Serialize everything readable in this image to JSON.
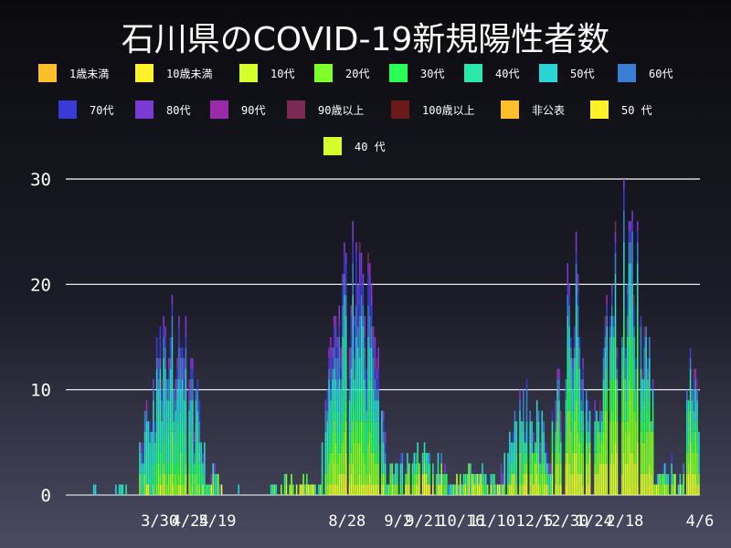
{
  "title": "石川県のCOVID-19新規陽性者数",
  "legend": [
    {
      "label": "1歳未満",
      "color": "#ffbf2a"
    },
    {
      "label": "10歳未満",
      "color": "#fff22a"
    },
    {
      "label": "10代",
      "color": "#d4ff2a"
    },
    {
      "label": "20代",
      "color": "#7fff2a"
    },
    {
      "label": "30代",
      "color": "#2aff55"
    },
    {
      "label": "40代",
      "color": "#2ae8aa"
    },
    {
      "label": "50代",
      "color": "#2ad4d4"
    },
    {
      "label": "60代",
      "color": "#3a7fd4"
    },
    {
      "label": "70代",
      "color": "#3a3ad4"
    },
    {
      "label": "80代",
      "color": "#7a3ad4"
    },
    {
      "label": "90代",
      "color": "#9a2aaa"
    },
    {
      "label": "90歳以上",
      "color": "#7a2a55"
    },
    {
      "label": "100歳以上",
      "color": "#6a1a1a"
    },
    {
      "label": "非公表",
      "color": "#ffbf2a"
    },
    {
      "label": "50 代",
      "color": "#fff22a"
    },
    {
      "label": "40 代",
      "color": "#d4ff2a"
    }
  ],
  "chart_data": {
    "type": "bar",
    "stacked": true,
    "ylim": [
      0,
      30
    ],
    "yticks": [
      0,
      10,
      20,
      30
    ],
    "xticks": [
      "3/30",
      "4/24",
      "5/19",
      "8/28",
      "9/2",
      "9/21",
      "10/16",
      "11/10",
      "12/5",
      "12/30",
      "1/24",
      "2/18",
      "4/6"
    ],
    "grid": true,
    "legend_position": "top",
    "series": [
      {
        "name": "1歳未満",
        "color": "#ffbf2a"
      },
      {
        "name": "10歳未満",
        "color": "#fff22a"
      },
      {
        "name": "10代",
        "color": "#d4ff2a"
      },
      {
        "name": "20代",
        "color": "#7fff2a"
      },
      {
        "name": "30代",
        "color": "#2aff55"
      },
      {
        "name": "40代",
        "color": "#2ae8aa"
      },
      {
        "name": "50代",
        "color": "#2ad4d4"
      },
      {
        "name": "60代",
        "color": "#3a7fd4"
      },
      {
        "name": "70代",
        "color": "#3a3ad4"
      },
      {
        "name": "80代",
        "color": "#7a3ad4"
      },
      {
        "name": "90代",
        "color": "#9a2aaa"
      },
      {
        "name": "90歳以上",
        "color": "#7a2a55"
      }
    ],
    "segments": [
      {
        "start": 15,
        "end": 18,
        "peak": 1,
        "mix": [
          0,
          0,
          0,
          0,
          0,
          0.5,
          0.5,
          0,
          0,
          0,
          0,
          0
        ]
      },
      {
        "start": 28,
        "end": 36,
        "peak": 1,
        "mix": [
          0,
          0,
          0,
          0,
          0,
          0.5,
          0.5,
          0,
          0,
          0,
          0,
          0
        ]
      },
      {
        "start": 43,
        "end": 82,
        "peak": 20,
        "mix": [
          0,
          0.02,
          0.06,
          0.1,
          0.1,
          0.2,
          0.2,
          0.12,
          0.08,
          0.06,
          0.04,
          0.02
        ]
      },
      {
        "start": 82,
        "end": 92,
        "peak": 3,
        "mix": [
          0,
          0.05,
          0.1,
          0.15,
          0.15,
          0.2,
          0.15,
          0.1,
          0.05,
          0.05,
          0,
          0
        ]
      },
      {
        "start": 100,
        "end": 102,
        "peak": 1,
        "mix": [
          0,
          0,
          0,
          0,
          0,
          0.5,
          0.5,
          0,
          0,
          0,
          0,
          0
        ]
      },
      {
        "start": 120,
        "end": 150,
        "peak": 2,
        "mix": [
          0,
          0.05,
          0.2,
          0.2,
          0.2,
          0.2,
          0.15,
          0,
          0,
          0,
          0,
          0
        ]
      },
      {
        "start": 150,
        "end": 188,
        "peak": 27,
        "mix": [
          0,
          0.02,
          0.08,
          0.15,
          0.1,
          0.15,
          0.15,
          0.12,
          0.1,
          0.08,
          0.03,
          0.02
        ]
      },
      {
        "start": 188,
        "end": 225,
        "peak": 6,
        "mix": [
          0,
          0.05,
          0.15,
          0.2,
          0.15,
          0.15,
          0.15,
          0.05,
          0.05,
          0.05,
          0,
          0
        ]
      },
      {
        "start": 225,
        "end": 255,
        "peak": 3,
        "mix": [
          0,
          0.05,
          0.15,
          0.2,
          0.2,
          0.2,
          0.2,
          0,
          0,
          0,
          0,
          0
        ]
      },
      {
        "start": 255,
        "end": 285,
        "peak": 11,
        "mix": [
          0,
          0.04,
          0.12,
          0.16,
          0.12,
          0.16,
          0.16,
          0.1,
          0.06,
          0.06,
          0.02,
          0
        ]
      },
      {
        "start": 285,
        "end": 312,
        "peak": 25,
        "mix": [
          0,
          0.03,
          0.14,
          0.18,
          0.12,
          0.14,
          0.12,
          0.1,
          0.07,
          0.05,
          0.03,
          0.02
        ]
      },
      {
        "start": 312,
        "end": 345,
        "peak": 30,
        "mix": [
          0,
          0.03,
          0.16,
          0.2,
          0.14,
          0.14,
          0.1,
          0.08,
          0.06,
          0.05,
          0.02,
          0.02
        ]
      },
      {
        "start": 345,
        "end": 362,
        "peak": 4,
        "mix": [
          0,
          0.05,
          0.15,
          0.2,
          0.15,
          0.2,
          0.15,
          0.05,
          0.05,
          0,
          0,
          0
        ]
      },
      {
        "start": 362,
        "end": 372,
        "peak": 16,
        "mix": [
          0,
          0.03,
          0.12,
          0.18,
          0.12,
          0.15,
          0.12,
          0.1,
          0.08,
          0.06,
          0.02,
          0.02
        ]
      }
    ],
    "num_days": 372,
    "xtick_days": [
      55,
      73,
      89,
      165,
      195,
      210,
      232,
      250,
      275,
      293,
      310,
      328,
      372
    ]
  }
}
